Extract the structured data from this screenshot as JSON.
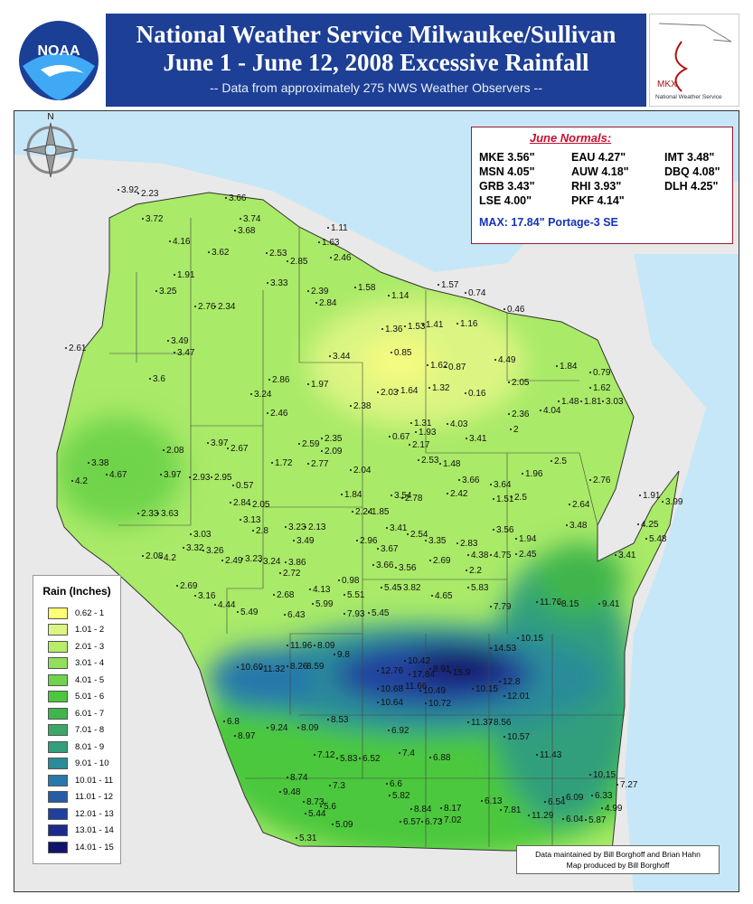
{
  "header": {
    "title_line1": "National Weather Service Milwaukee/Sullivan",
    "title_line2": "June 1 - June 12, 2008 Excessive Rainfall",
    "subtitle": "-- Data from approximately 275 NWS Weather Observers --",
    "noaa_logo": "NOAA",
    "office_logo": "MKX",
    "office_logo_caption": "National Weather Service"
  },
  "normals": {
    "title": "June Normals:",
    "items": [
      "MKE 3.56\"",
      "EAU 4.27\"",
      "IMT 3.48\"",
      "MSN 4.05\"",
      "AUW 4.18\"",
      "DBQ 4.08\"",
      "GRB 3.43\"",
      "RHI 3.93\"",
      "DLH 4.25\"",
      "LSE 4.00\"",
      "PKF 4.14\""
    ],
    "max": "MAX: 17.84\"  Portage-3 SE"
  },
  "legend": {
    "title": "Rain (Inches)",
    "items": [
      {
        "label": "0.62 - 1",
        "color": "#ffff73"
      },
      {
        "label": "1.01 - 2",
        "color": "#dcf582"
      },
      {
        "label": "2.01 - 3",
        "color": "#b6ee6c"
      },
      {
        "label": "3.01 - 4",
        "color": "#92e05a"
      },
      {
        "label": "4.01 - 5",
        "color": "#6fd44b"
      },
      {
        "label": "5.01 - 6",
        "color": "#4bc83e"
      },
      {
        "label": "6.01 - 7",
        "color": "#3fb54c"
      },
      {
        "label": "7.01 - 8",
        "color": "#3aa866"
      },
      {
        "label": "8.01 - 9",
        "color": "#339f7c"
      },
      {
        "label": "9.01 - 10",
        "color": "#2c8c98"
      },
      {
        "label": "10.01 - 11",
        "color": "#2878aa"
      },
      {
        "label": "11.01 - 12",
        "color": "#275ca6"
      },
      {
        "label": "12.01 - 13",
        "color": "#213f9e"
      },
      {
        "label": "13.01 - 14",
        "color": "#1b2a8c"
      },
      {
        "label": "14.01 - 15",
        "color": "#12136a"
      }
    ]
  },
  "stations": [
    3.92,
    2.23,
    3.72,
    4.16,
    3.66,
    3.74,
    3.68,
    3.62,
    1.91,
    3.25,
    2.76,
    2.34,
    2.61,
    3.49,
    3.47,
    3.6,
    2.86,
    3.24,
    1.97,
    3.44,
    2.53,
    2.85,
    2.46,
    1.63,
    1.11,
    2.39,
    2.84,
    3.33,
    1.58,
    1.14,
    1.57,
    0.74,
    0.46,
    1.36,
    1.53,
    1.41,
    1.16,
    0.85,
    1.62,
    0.87,
    4.49,
    2.05,
    1.32,
    0.16,
    2.03,
    1.64,
    2.38,
    2.46,
    1.31,
    0.67,
    1.93,
    2.17,
    4.03,
    3.41,
    2.36,
    2,
    4.04,
    1.84,
    1.48,
    1.81,
    3.03,
    0.79,
    1.62,
    2.08,
    3.97,
    2.67,
    2.59,
    2.35,
    2.09,
    2.53,
    1.48,
    3.66,
    3.64,
    2.42,
    1.96,
    2.5,
    1.72,
    2.77,
    2.04,
    3.38,
    4.67,
    4.2,
    3.97,
    2.93,
    2.95,
    0.57,
    2.05,
    2.84,
    3.13,
    1.84,
    3.54,
    2.78,
    2.24,
    1.85,
    2.33,
    3.63,
    1.51,
    2.5,
    2.76,
    1.91,
    3.99,
    4.25,
    2.64,
    3.48,
    5.48,
    3.41,
    3.03,
    3.32,
    3.26,
    2.8,
    3.23,
    2.13,
    3.49,
    2.96,
    3.41,
    2.54,
    3.35,
    2.83,
    3.56,
    1.94,
    2.08,
    4.2,
    2.49,
    3.23,
    3.24,
    3.86,
    2.72,
    3.67,
    4.38,
    4.75,
    2.45,
    3.66,
    3.56,
    2.69,
    2.2,
    2.69,
    3.16,
    4.44,
    5.49,
    2.68,
    4.13,
    0.98,
    5.45,
    3.82,
    5.51,
    5.99,
    4.65,
    5.83,
    6.43,
    7.93,
    5.45,
    7.79,
    11.76,
    8.15,
    9.41,
    11.96,
    8.09,
    10.69,
    11.32,
    8.26,
    8.59,
    9.8,
    10.42,
    12.76,
    17.84,
    8.91,
    15.9,
    14.53,
    10.15,
    12.8,
    10.68,
    11.66,
    10.49,
    10.15,
    12.01,
    10.64,
    10.72,
    6.8,
    8.97,
    9.24,
    8.09,
    8.53,
    6.92,
    11.37,
    8.56,
    10.57,
    7.12,
    5.83,
    6.52,
    7.4,
    6.88,
    11.43,
    8.74,
    9.48,
    7.3,
    6.6,
    5.82,
    8.73,
    5.6,
    5.44,
    5.09,
    8.84,
    8.17,
    7.02,
    6.13,
    7.81,
    11.29,
    6.54,
    6.09,
    6.33,
    4.99,
    6.04,
    5.87,
    7.27,
    10.15,
    6.57,
    6.73,
    5.31
  ],
  "credits": {
    "line1": "Data maintained by Bill Borghoff and Brian Hahn",
    "line2": "Map produced by Bill Borghoff"
  }
}
